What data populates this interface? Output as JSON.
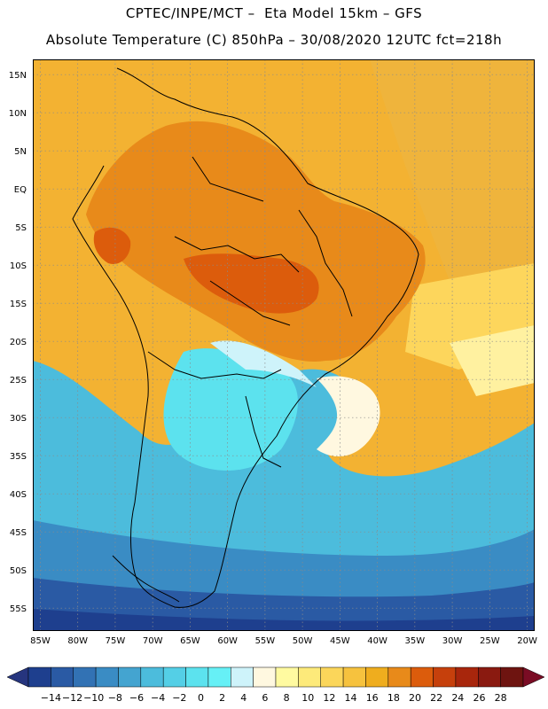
{
  "title_line1": "CPTEC/INPE/MCT –  Eta Model 15km – GFS",
  "title_line2": "Absolute Temperature (C) 850hPa – 30/08/2020 12UTC fct=218h",
  "map": {
    "lon_range": [
      -86,
      -19
    ],
    "lat_range": [
      -58,
      17
    ],
    "lat_labels": [
      {
        "lat": 15,
        "text": "15N"
      },
      {
        "lat": 10,
        "text": "10N"
      },
      {
        "lat": 5,
        "text": "5N"
      },
      {
        "lat": 0,
        "text": "EQ"
      },
      {
        "lat": -5,
        "text": "5S"
      },
      {
        "lat": -10,
        "text": "10S"
      },
      {
        "lat": -15,
        "text": "15S"
      },
      {
        "lat": -20,
        "text": "20S"
      },
      {
        "lat": -25,
        "text": "25S"
      },
      {
        "lat": -30,
        "text": "30S"
      },
      {
        "lat": -35,
        "text": "35S"
      },
      {
        "lat": -40,
        "text": "40S"
      },
      {
        "lat": -45,
        "text": "45S"
      },
      {
        "lat": -50,
        "text": "50S"
      },
      {
        "lat": -55,
        "text": "55S"
      }
    ],
    "lon_labels": [
      {
        "lon": -85,
        "text": "85W"
      },
      {
        "lon": -80,
        "text": "80W"
      },
      {
        "lon": -75,
        "text": "75W"
      },
      {
        "lon": -70,
        "text": "70W"
      },
      {
        "lon": -65,
        "text": "65W"
      },
      {
        "lon": -60,
        "text": "60W"
      },
      {
        "lon": -55,
        "text": "55W"
      },
      {
        "lon": -50,
        "text": "50W"
      },
      {
        "lon": -45,
        "text": "45W"
      },
      {
        "lon": -40,
        "text": "40W"
      },
      {
        "lon": -35,
        "text": "35W"
      },
      {
        "lon": -30,
        "text": "30W"
      },
      {
        "lon": -25,
        "text": "25W"
      },
      {
        "lon": -20,
        "text": "20W"
      }
    ]
  },
  "colorbar": {
    "colors": [
      "#1e3f8e",
      "#2a5aa4",
      "#3272b4",
      "#3a8cc4",
      "#44a4d0",
      "#4cbcdc",
      "#54cfe6",
      "#5ce2ee",
      "#66f0f6",
      "#cef3fa",
      "#fff8e0",
      "#fffaa0",
      "#fdea7a",
      "#fbd65a",
      "#f6c23e",
      "#efad1e",
      "#e88a1a",
      "#dc5c0c",
      "#c6400c",
      "#a8260c",
      "#8a1a10",
      "#6e1410"
    ],
    "under_color": "#26357e",
    "over_color": "#7a0c24",
    "labels": [
      "−14",
      "−12",
      "−10",
      "−8",
      "−6",
      "−4",
      "−2",
      "0",
      "2",
      "4",
      "6",
      "8",
      "10",
      "12",
      "14",
      "16",
      "18",
      "20",
      "22",
      "24",
      "26",
      "28"
    ]
  }
}
